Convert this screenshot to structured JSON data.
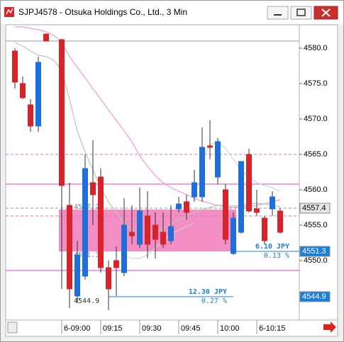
{
  "chart_data": {
    "type": "candlestick",
    "title": "SJPJ4578 - Otsuka Holdings Co., Ltd., 3 Min",
    "categories": [
      null,
      null,
      null,
      null,
      null,
      null,
      "6-09:00",
      null,
      null,
      null,
      null,
      "09:15",
      null,
      null,
      null,
      null,
      "09:30",
      null,
      null,
      null,
      null,
      "09:45",
      null,
      null,
      null,
      null,
      "10:00",
      null,
      null,
      null,
      null,
      "6-10:15",
      null,
      null,
      null
    ],
    "open": [
      4579.6,
      4575.0,
      4572.0,
      4569.0,
      4582.0,
      null,
      4581.2,
      4557.8,
      4545.0,
      4547.8,
      4561.0,
      4561.8,
      4549.0,
      4550.0,
      4548.3,
      4554.0,
      4552.3,
      4556.3,
      4555.0,
      4554.0,
      4552.8,
      4557.3,
      4558.3,
      4559.0,
      4559.0,
      4566.2,
      4561.8,
      4560.0,
      4551.0,
      4554.0,
      4565.0,
      4557.3,
      4556.0,
      4557.3,
      4557.0
    ],
    "high": [
      4580.0,
      4576.0,
      4572.8,
      4578.8,
      4582.0,
      null,
      4581.3,
      4561.0,
      4552.8,
      4565.0,
      4567.0,
      4563.0,
      4550.0,
      4552.0,
      4558.8,
      4557.8,
      4560.3,
      4559.8,
      4556.8,
      4556.8,
      4557.8,
      4559.0,
      4559.3,
      4562.8,
      4568.8,
      4569.8,
      4567.3,
      4560.8,
      4556.8,
      4564.0,
      4565.8,
      4560.0,
      4556.3,
      4559.8,
      4557.4
    ],
    "low": [
      4574.3,
      4572.8,
      4568.2,
      4568.2,
      4581.0,
      null,
      4546.0,
      4543.3,
      4544.0,
      4547.3,
      4555.0,
      4548.3,
      4543.0,
      4545.0,
      4547.8,
      4552.3,
      4551.8,
      4550.3,
      4550.3,
      4551.8,
      4552.3,
      4556.8,
      4555.8,
      4558.3,
      4558.3,
      4564.3,
      4560.8,
      4552.3,
      4550.8,
      4553.8,
      4556.8,
      4556.3,
      4552.3,
      4556.3,
      4553.8
    ],
    "close": [
      4575.2,
      4573.0,
      4569.0,
      4578.0,
      4581.0,
      null,
      4560.6,
      4546.0,
      4550.8,
      4563.0,
      4559.3,
      4549.0,
      4546.0,
      4549.0,
      4555.0,
      4553.5,
      4557.0,
      4552.3,
      4553.0,
      4552.3,
      4554.8,
      4558.0,
      4556.8,
      4561.0,
      4566.0,
      4566.0,
      4566.8,
      4553.0,
      4556.0,
      4564.0,
      4557.0,
      4556.8,
      4552.8,
      4559.0,
      4554.0
    ],
    "up_color": "#1e6fd9",
    "down_color": "#d8232a",
    "ylim": [
      4541.6,
      4583.3
    ],
    "yticks": [
      {
        "value": 4550,
        "label": "4550.0"
      },
      {
        "value": 4555,
        "label": "4555.0"
      },
      {
        "value": 4560,
        "label": "4560.0"
      },
      {
        "value": 4565,
        "label": "4565.0"
      },
      {
        "value": 4570,
        "label": "4570.0"
      },
      {
        "value": 4575,
        "label": "4575.0"
      },
      {
        "value": 4580,
        "label": "4580.0"
      }
    ],
    "overlays": [
      {
        "color": "#f29ad8",
        "values": [
          4583.0,
          4583.0,
          4582.8,
          4582.6,
          4582.3,
          4581.8,
          4580.8,
          4578.8,
          4577.3,
          4575.8,
          4574.3,
          4572.8,
          4571.3,
          4569.8,
          4568.3,
          4566.8,
          4564.8,
          4563.3,
          4562.0,
          4561.0,
          4560.3,
          4559.8,
          4559.3,
          4558.8,
          4558.4,
          4558.1,
          4557.8,
          4557.6,
          4557.5,
          4557.6,
          4557.7,
          4557.8,
          4558.0,
          4558.3,
          4558.6
        ]
      },
      {
        "color": "#b8c8b0",
        "values": [
          4580.8,
          4580.3,
          4579.6,
          4579.0,
          4578.8,
          4578.3,
          4576.8,
          4572.8,
          4568.3,
          4565.3,
          4562.8,
          4560.3,
          4558.3,
          4556.8,
          4555.3,
          4554.3,
          4553.8,
          4553.8,
          4554.1,
          4554.6,
          4555.2,
          4555.8,
          4556.3,
          4556.8,
          4557.2,
          4557.5,
          4557.8,
          4557.8,
          4557.7,
          4557.8,
          4558.0,
          4558.1,
          4558.0,
          4557.8,
          4557.6
        ]
      },
      {
        "color": "#c8dcc0",
        "values": [
          null,
          null,
          null,
          null,
          null,
          null,
          null,
          null,
          null,
          null,
          null,
          null,
          null,
          null,
          null,
          null,
          null,
          null,
          null,
          null,
          null,
          null,
          null,
          null,
          4564.3,
          4566.3,
          4566.8,
          4565.8,
          4564.3,
          4562.8,
          4561.8,
          4561.0,
          4560.6,
          4560.3,
          4559.8
        ]
      },
      {
        "color": "#c8dcc0",
        "values": [
          null,
          null,
          null,
          null,
          null,
          null,
          null,
          null,
          null,
          null,
          null,
          null,
          null,
          null,
          4550.8,
          4550.3,
          4550.3,
          4550.8,
          4551.8,
          4552.8,
          4553.8,
          4554.3,
          4554.8,
          4555.3,
          null,
          null,
          null,
          null,
          null,
          null,
          null,
          null,
          null,
          null,
          null
        ]
      }
    ],
    "levels": [
      {
        "value": 4581.0,
        "color": "#9a9a9a",
        "dash": false
      },
      {
        "value": 4565.0,
        "color": "#e070c0",
        "dash": true
      },
      {
        "value": 4560.8,
        "color": "#e040d0",
        "dash": false
      },
      {
        "value": 4557.4,
        "color": "#9a9a9a",
        "dash": true
      },
      {
        "value": 4556.3,
        "color": "#e070c0",
        "dash": true
      },
      {
        "value": 4548.6,
        "color": "#e040d0",
        "dash": false
      }
    ],
    "zone": {
      "top": 4557.2,
      "bottom": 4551.3,
      "color": "#f07ab8"
    },
    "price_markers": [
      {
        "value": 4557.4,
        "color": "#e6e6e6",
        "text_color": "#000000"
      },
      {
        "value": 4551.3,
        "color": "#1a7fd8",
        "text_color": "#ffffff"
      },
      {
        "value": 4544.9,
        "color": "#1a7fd8",
        "text_color": "#ffffff"
      }
    ],
    "measurements": [
      {
        "change": "12.30 JPY",
        "percent": "0.27 %"
      },
      {
        "change": "6.10 JPY",
        "percent": "0.13 %"
      }
    ]
  }
}
